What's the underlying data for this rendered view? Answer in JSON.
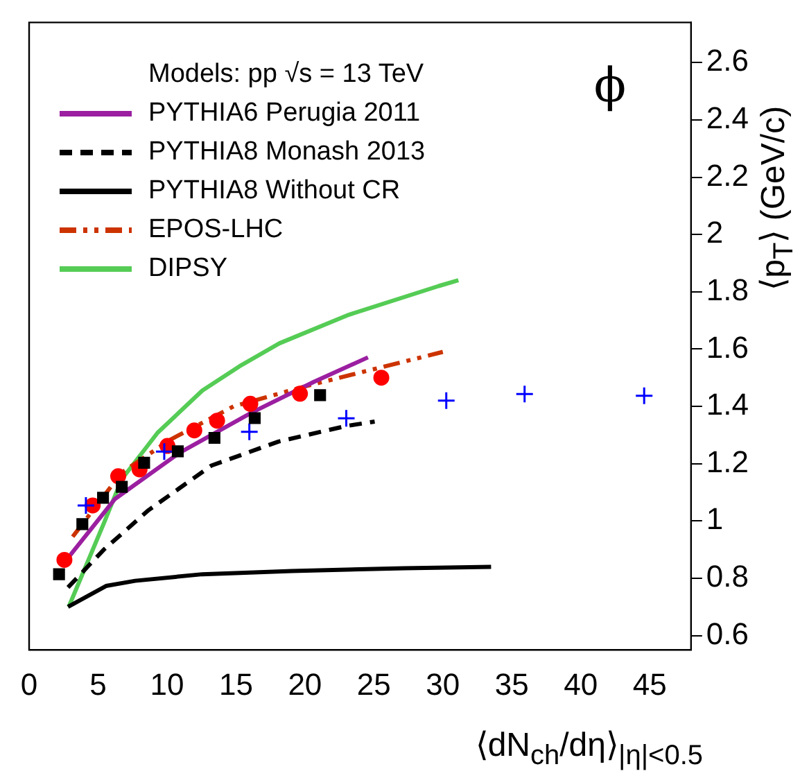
{
  "chart_data": {
    "type": "line",
    "legend_title": "Models: pp √s = 13 TeV",
    "xlabel": "⟨dN$_{ch}$/dη⟩$_{|η|<0.5}$",
    "ylabel": "⟨p$_{T}$⟩ (GeV/c)",
    "annotations": [
      "ϕ"
    ],
    "xlim": [
      0,
      48
    ],
    "xticks": [
      0,
      5,
      10,
      15,
      20,
      25,
      30,
      35,
      40,
      45
    ],
    "ylim": [
      0.55,
      2.74
    ],
    "yticks": [
      0.6,
      0.8,
      1,
      1.2,
      1.4,
      1.6,
      1.8,
      2,
      2.2,
      2.4,
      2.6
    ],
    "legend": "top left",
    "grid": false,
    "series": [
      {
        "name": "PYTHIA6 Perugia 2011",
        "color": "#9b1fa0",
        "line_style": "solid",
        "marker": "none",
        "x": [
          2.66,
          6.23,
          10.94,
          16.13,
          20.67,
          24.57
        ],
        "values": [
          0.861,
          1.077,
          1.239,
          1.378,
          1.486,
          1.571
        ]
      },
      {
        "name": "PYTHIA8 Monash 2013",
        "color": "#000000",
        "line_style": "dashed",
        "marker": "none",
        "x": [
          2.82,
          5.42,
          8.67,
          13.21,
          18.08,
          22.95,
          25.06
        ],
        "values": [
          0.768,
          0.9,
          1.038,
          1.193,
          1.277,
          1.331,
          1.347
        ]
      },
      {
        "name": "PYTHIA8 Without CR",
        "color": "#000000",
        "line_style": "solid",
        "marker": "none",
        "x": [
          2.82,
          5.58,
          7.69,
          12.56,
          19.05,
          27.17,
          33.5
        ],
        "values": [
          0.7,
          0.773,
          0.791,
          0.814,
          0.825,
          0.835,
          0.84
        ]
      },
      {
        "name": "EPOS-LHC",
        "color": "#cc3300",
        "line_style": "dashdot",
        "marker": "none",
        "x": [
          3.16,
          6.72,
          10.29,
          14.83,
          20.03,
          26.51,
          30
        ],
        "values": [
          0.945,
          1.169,
          1.285,
          1.4,
          1.47,
          1.548,
          1.59
        ]
      },
      {
        "name": "DIPSY",
        "color": "#55cc55",
        "line_style": "solid",
        "marker": "none",
        "x": [
          2.87,
          5.42,
          6.72,
          9.32,
          12.56,
          15.26,
          18.15,
          23.2,
          29.7,
          31.13
        ],
        "values": [
          0.7,
          0.992,
          1.146,
          1.308,
          1.455,
          1.54,
          1.62,
          1.72,
          1.82,
          1.84
        ]
      },
      {
        "type": "scatter",
        "color": "#000000",
        "marker": "square",
        "x": [
          2.17,
          3.86,
          5.36,
          6.72,
          8.34,
          10.78,
          13.44,
          16.36,
          21.1
        ],
        "values": [
          0.814,
          0.989,
          1.081,
          1.119,
          1.203,
          1.243,
          1.29,
          1.359,
          1.439
        ]
      },
      {
        "type": "scatter",
        "color": "#0000ff",
        "marker": "cross",
        "x": [
          4.12,
          9.8,
          15.97,
          23,
          30.25,
          35.93,
          44.6
        ],
        "values": [
          1.054,
          1.242,
          1.311,
          1.358,
          1.42,
          1.443,
          1.437
        ]
      },
      {
        "type": "scatter",
        "color": "#ff0000",
        "marker": "circle",
        "x": [
          2.56,
          4.61,
          6.46,
          8.01,
          10.03,
          11.98,
          13.63,
          16.04,
          19.64,
          25.54
        ],
        "values": [
          0.864,
          1.054,
          1.156,
          1.18,
          1.262,
          1.316,
          1.35,
          1.409,
          1.444,
          1.5
        ]
      }
    ]
  }
}
